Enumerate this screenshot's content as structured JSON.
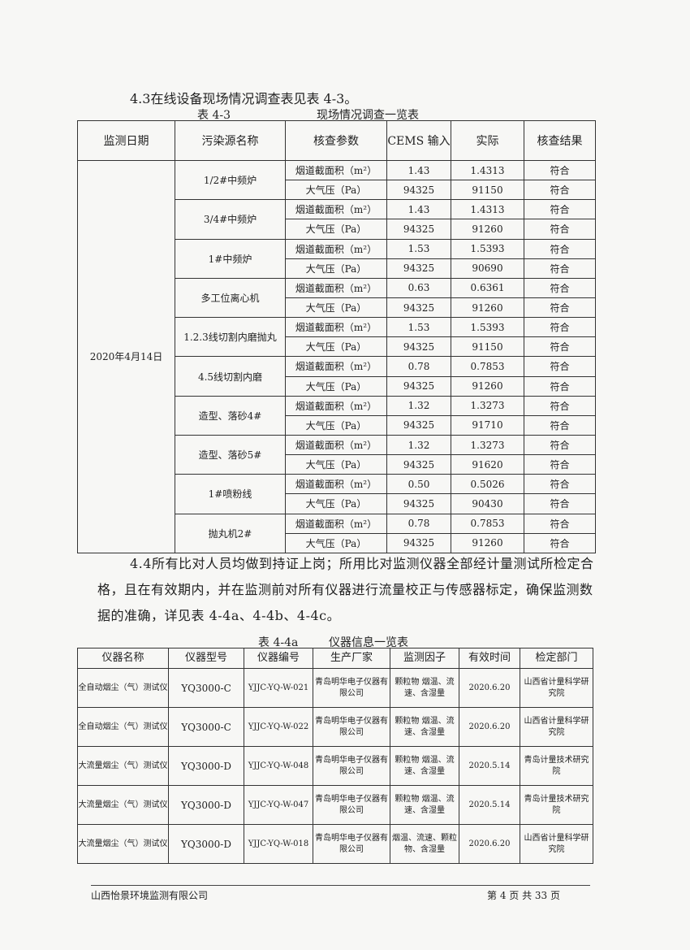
{
  "section_43": "4.3在线设备现场情况调查表见表 4-3。",
  "table1": {
    "caption_no": "表 4-3",
    "caption_title": "现场情况调查一览表",
    "headers": [
      "监测日期",
      "污染源名称",
      "核查参数",
      "CEMS 输入",
      "实际",
      "核查结果"
    ],
    "date": "2020年4月14日",
    "groups": [
      {
        "source": "1/2#中频炉",
        "rows": [
          [
            "烟道截面积（m²）",
            "1.43",
            "1.4313",
            "符合"
          ],
          [
            "大气压（Pa）",
            "94325",
            "91150",
            "符合"
          ]
        ]
      },
      {
        "source": "3/4#中频炉",
        "rows": [
          [
            "烟道截面积（m²）",
            "1.43",
            "1.4313",
            "符合"
          ],
          [
            "大气压（Pa）",
            "94325",
            "91260",
            "符合"
          ]
        ]
      },
      {
        "source": "1#中频炉",
        "rows": [
          [
            "烟道截面积（m²）",
            "1.53",
            "1.5393",
            "符合"
          ],
          [
            "大气压（Pa）",
            "94325",
            "90690",
            "符合"
          ]
        ]
      },
      {
        "source": "多工位离心机",
        "rows": [
          [
            "烟道截面积（m²）",
            "0.63",
            "0.6361",
            "符合"
          ],
          [
            "大气压（Pa）",
            "94325",
            "91260",
            "符合"
          ]
        ]
      },
      {
        "source": "1.2.3线切割内磨抛丸",
        "rows": [
          [
            "烟道截面积（m²）",
            "1.53",
            "1.5393",
            "符合"
          ],
          [
            "大气压（Pa）",
            "94325",
            "91150",
            "符合"
          ]
        ]
      },
      {
        "source": "4.5线切割内磨",
        "rows": [
          [
            "烟道截面积（m²）",
            "0.78",
            "0.7853",
            "符合"
          ],
          [
            "大气压（Pa）",
            "94325",
            "91260",
            "符合"
          ]
        ]
      },
      {
        "source": "造型、落砂4#",
        "rows": [
          [
            "烟道截面积（m²）",
            "1.32",
            "1.3273",
            "符合"
          ],
          [
            "大气压（Pa）",
            "94325",
            "91710",
            "符合"
          ]
        ]
      },
      {
        "source": "造型、落砂5#",
        "rows": [
          [
            "烟道截面积（m²）",
            "1.32",
            "1.3273",
            "符合"
          ],
          [
            "大气压（Pa）",
            "94325",
            "91620",
            "符合"
          ]
        ]
      },
      {
        "source": "1#喷粉线",
        "rows": [
          [
            "烟道截面积（m²）",
            "0.50",
            "0.5026",
            "符合"
          ],
          [
            "大气压（Pa）",
            "94325",
            "90430",
            "符合"
          ]
        ]
      },
      {
        "source": "抛丸机2#",
        "rows": [
          [
            "烟道截面积（m²）",
            "0.78",
            "0.7853",
            "符合"
          ],
          [
            "大气压（Pa）",
            "94325",
            "91260",
            "符合"
          ]
        ]
      }
    ]
  },
  "section_44": "4.4所有比对人员均做到持证上岗；所用比对监测仪器全部经计量测试所检定合格，且在有效期内，并在监测前对所有仪器进行流量校正与传感器标定，确保监测数据的准确，详见表 4-4a、4-4b、4-4c。",
  "table2": {
    "caption_no": "表 4-4a",
    "caption_title": "仪器信息一览表",
    "headers": [
      "仪器名称",
      "仪器型号",
      "仪器编号",
      "生产厂家",
      "监测因子",
      "有效时间",
      "检定部门"
    ],
    "rows": [
      [
        "全自动烟尘（气）测试仪",
        "YQ3000-C",
        "YJJC-YQ-W-021",
        "青岛明华电子仪器有限公司",
        "颗粒物 烟温、流速、含湿量",
        "2020.6.20",
        "山西省计量科学研究院"
      ],
      [
        "全自动烟尘（气）测试仪",
        "YQ3000-C",
        "YJJC-YQ-W-022",
        "青岛明华电子仪器有限公司",
        "颗粒物 烟温、流速、含湿量",
        "2020.6.20",
        "山西省计量科学研究院"
      ],
      [
        "大流量烟尘（气）测试仪",
        "YQ3000-D",
        "YJJC-YQ-W-048",
        "青岛明华电子仪器有限公司",
        "颗粒物 烟温、流速、含湿量",
        "2020.5.14",
        "青岛计量技术研究院"
      ],
      [
        "大流量烟尘（气）测试仪",
        "YQ3000-D",
        "YJJC-YQ-W-047",
        "青岛明华电子仪器有限公司",
        "颗粒物 烟温、流速、含湿量",
        "2020.5.14",
        "青岛计量技术研究院"
      ],
      [
        "大流量烟尘（气）测试仪",
        "YQ3000-D",
        "YJJC-YQ-W-018",
        "青岛明华电子仪器有限公司",
        "烟温、流速、颗粒物、含湿量",
        "2020.6.20",
        "山西省计量科学研究院"
      ]
    ]
  },
  "footer": {
    "company": "山西怡景环境监测有限公司",
    "page": "第 4 页 共 33 页"
  }
}
